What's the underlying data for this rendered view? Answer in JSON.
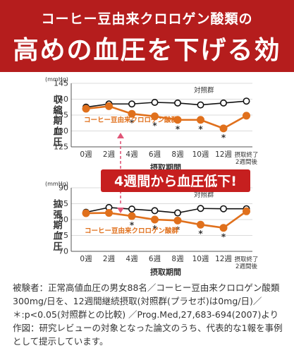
{
  "header": {
    "subtitle": "コーヒー豆由来クロロゲン酸類の",
    "title": "高めの血圧を下げる効果"
  },
  "callout": "4週間から血圧低下!",
  "colors": {
    "brand_red": "#b51d1d",
    "orange": "#e0701c",
    "control": "#111111"
  },
  "chart_data": [
    {
      "type": "line",
      "ylabel": "収縮期血圧",
      "unit": "(mmHg)",
      "xlabel": "摂取期間",
      "categories": [
        "0週",
        "2週",
        "4週",
        "6週",
        "8週",
        "10週",
        "12週",
        "摂取終了\n2週間後"
      ],
      "ylim": [
        125,
        145
      ],
      "yticks": [
        125,
        130,
        135,
        140,
        145
      ],
      "grid": true,
      "series": [
        {
          "name": "対照群",
          "values": [
            137.5,
            138.5,
            138.5,
            139,
            138.8,
            138.2,
            138.8,
            139.4
          ],
          "style": "control"
        },
        {
          "name": "コーヒー豆由来クロロゲン酸群",
          "values": [
            137,
            137.8,
            135.4,
            134.6,
            133.5,
            133.5,
            130.8,
            134.8
          ],
          "style": "treatment"
        }
      ],
      "significance": [
        "",
        "",
        "*",
        "*",
        "*",
        "*",
        "*",
        ""
      ]
    },
    {
      "type": "line",
      "ylabel": "拡張期血圧",
      "unit": "(mmHg)",
      "xlabel": "摂取期間",
      "categories": [
        "0週",
        "2週",
        "4週",
        "6週",
        "8週",
        "10週",
        "12週",
        "摂取終了\n2週間後"
      ],
      "ylim": [
        70,
        90
      ],
      "yticks": [
        70,
        75,
        80,
        85,
        90
      ],
      "grid": true,
      "series": [
        {
          "name": "対照群",
          "values": [
            82.3,
            83.8,
            83.3,
            82.8,
            82.1,
            83.5,
            83.4,
            83.4
          ],
          "style": "control"
        },
        {
          "name": "コーヒー豆由来クロロゲン酸群",
          "values": [
            82,
            82.1,
            81.1,
            80,
            79.7,
            78.4,
            77.4,
            82.6
          ],
          "style": "treatment"
        }
      ],
      "significance": [
        "",
        "",
        "*",
        "*",
        "*",
        "*",
        "*",
        ""
      ]
    }
  ],
  "footnote": [
    "被験者：正常高値血圧の男女88名／コーヒー豆由来クロロゲン酸類",
    "300mg/日を、12週間継続摂取(対照群(プラセボ)は0mg/日)／",
    "＊:p<0.05(対照群との比較) ／Prog.Med,27,683-694(2007)より",
    "作図：研究レビューの対象となった論文のうち、代表的な1報を事例",
    "として提示しています。"
  ]
}
